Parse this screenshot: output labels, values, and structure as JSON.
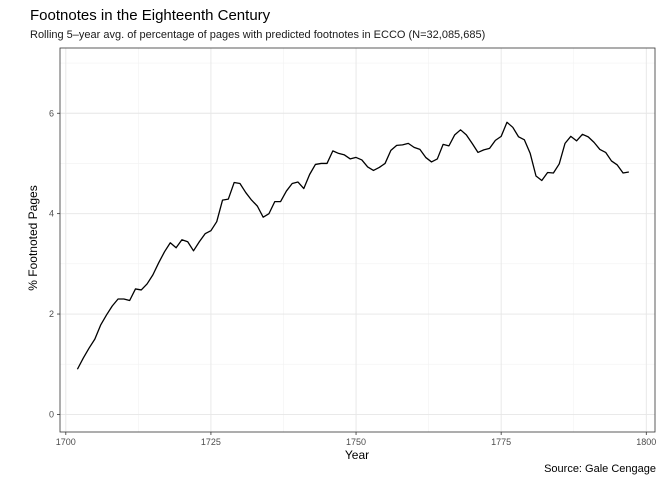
{
  "chart_data": {
    "type": "line",
    "title": "Footnotes in the Eighteenth Century",
    "subtitle": "Rolling 5–year avg. of percentage of pages with predicted footnotes in ECCO (N=32,085,685)",
    "xlabel": "Year",
    "ylabel": "% Footnoted Pages",
    "caption": "Source: Gale Cengage",
    "xlim": [
      1699,
      1801.5
    ],
    "ylim": [
      -0.35,
      7.3
    ],
    "x_ticks": [
      1700,
      1725,
      1750,
      1775,
      1800
    ],
    "x_tick_labels": [
      "1700",
      "1725",
      "1750",
      "1775",
      "1800"
    ],
    "y_ticks": [
      0,
      2,
      4,
      6
    ],
    "y_tick_labels": [
      "0",
      "2",
      "4",
      "6"
    ],
    "x_minor": [
      1712.5,
      1737.5,
      1762.5,
      1787.5
    ],
    "y_minor": [
      1,
      3,
      5,
      7
    ],
    "grid": true,
    "legend": "none",
    "line_color": "#000000",
    "x": [
      1702,
      1703,
      1704,
      1705,
      1706,
      1707,
      1708,
      1709,
      1710,
      1711,
      1712,
      1713,
      1714,
      1715,
      1716,
      1717,
      1718,
      1719,
      1720,
      1721,
      1722,
      1723,
      1724,
      1725,
      1726,
      1727,
      1728,
      1729,
      1730,
      1731,
      1732,
      1733,
      1734,
      1735,
      1736,
      1737,
      1738,
      1739,
      1740,
      1741,
      1742,
      1743,
      1744,
      1745,
      1746,
      1747,
      1748,
      1749,
      1750,
      1751,
      1752,
      1753,
      1754,
      1755,
      1756,
      1757,
      1758,
      1759,
      1760,
      1761,
      1762,
      1763,
      1764,
      1765,
      1766,
      1767,
      1768,
      1769,
      1770,
      1771,
      1772,
      1773,
      1774,
      1775,
      1776,
      1777,
      1778,
      1779,
      1780,
      1781,
      1782,
      1783,
      1784,
      1785,
      1786,
      1787,
      1788,
      1789,
      1790,
      1791,
      1792,
      1793,
      1794,
      1795,
      1796,
      1797
    ],
    "values": [
      0.9,
      1.12,
      1.32,
      1.5,
      1.78,
      1.98,
      2.16,
      2.3,
      2.3,
      2.27,
      2.5,
      2.48,
      2.6,
      2.78,
      3.02,
      3.24,
      3.42,
      3.32,
      3.48,
      3.44,
      3.26,
      3.44,
      3.6,
      3.66,
      3.84,
      4.27,
      4.29,
      4.62,
      4.6,
      4.42,
      4.27,
      4.15,
      3.93,
      4.0,
      4.24,
      4.24,
      4.45,
      4.6,
      4.63,
      4.5,
      4.78,
      4.98,
      5.0,
      5.0,
      5.25,
      5.2,
      5.17,
      5.09,
      5.12,
      5.07,
      4.93,
      4.86,
      4.92,
      5.0,
      5.26,
      5.36,
      5.37,
      5.4,
      5.32,
      5.28,
      5.12,
      5.03,
      5.09,
      5.38,
      5.35,
      5.57,
      5.67,
      5.57,
      5.4,
      5.22,
      5.27,
      5.3,
      5.46,
      5.54,
      5.82,
      5.72,
      5.53,
      5.47,
      5.2,
      4.75,
      4.66,
      4.82,
      4.81,
      4.99,
      5.4,
      5.54,
      5.45,
      5.58,
      5.53,
      5.42,
      5.28,
      5.22,
      5.05,
      4.97,
      4.81,
      4.83
    ]
  }
}
